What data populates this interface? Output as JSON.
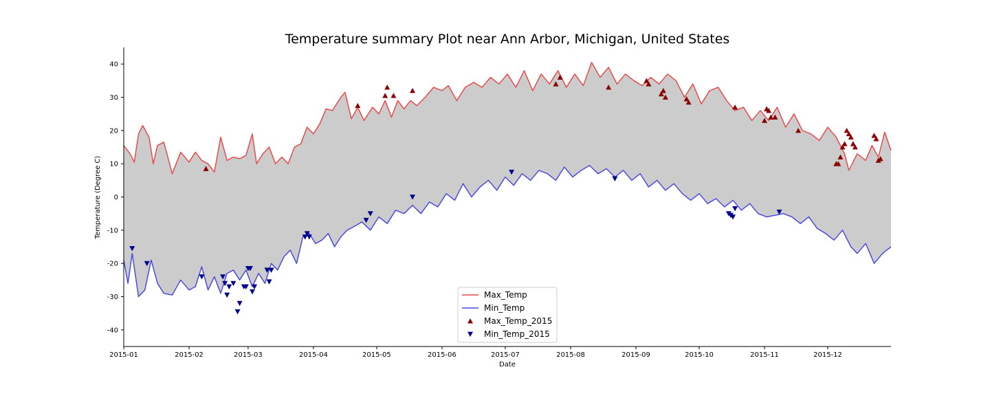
{
  "chart_data": {
    "type": "line",
    "title": "Temperature summary Plot near Ann Arbor, Michigan, United States",
    "xlabel": "Date",
    "ylabel": "Temperature (Degree C)",
    "xlim": [
      "2015-01-01",
      "2015-12-31"
    ],
    "ylim": [
      -45,
      45
    ],
    "x_ticks": [
      "2015-01",
      "2015-02",
      "2015-03",
      "2015-04",
      "2015-05",
      "2015-06",
      "2015-07",
      "2015-08",
      "2015-09",
      "2015-10",
      "2015-11",
      "2015-12"
    ],
    "y_ticks": [
      40,
      30,
      20,
      10,
      0,
      -10,
      -20,
      -30,
      -40
    ],
    "legend_position": "lower-center",
    "grid": false,
    "fill_between": {
      "color": "#cccccc"
    },
    "series": [
      {
        "name": "Max_Temp",
        "type": "line",
        "color": "#e84a4a",
        "points": [
          [
            "2015-01-01",
            15.5
          ],
          [
            "2015-01-04",
            13
          ],
          [
            "2015-01-06",
            10.5
          ],
          [
            "2015-01-08",
            19
          ],
          [
            "2015-01-10",
            21.5
          ],
          [
            "2015-01-13",
            18
          ],
          [
            "2015-01-15",
            10
          ],
          [
            "2015-01-17",
            15.5
          ],
          [
            "2015-01-20",
            16.5
          ],
          [
            "2015-01-24",
            7
          ],
          [
            "2015-01-28",
            13.5
          ],
          [
            "2015-02-01",
            10.5
          ],
          [
            "2015-02-04",
            13.5
          ],
          [
            "2015-02-07",
            11
          ],
          [
            "2015-02-10",
            10
          ],
          [
            "2015-02-13",
            7.5
          ],
          [
            "2015-02-16",
            18
          ],
          [
            "2015-02-19",
            11
          ],
          [
            "2015-02-22",
            12
          ],
          [
            "2015-02-25",
            11.5
          ],
          [
            "2015-02-28",
            12.5
          ],
          [
            "2015-03-03",
            19
          ],
          [
            "2015-03-05",
            10
          ],
          [
            "2015-03-08",
            13
          ],
          [
            "2015-03-11",
            15
          ],
          [
            "2015-03-14",
            10
          ],
          [
            "2015-03-17",
            12
          ],
          [
            "2015-03-20",
            10
          ],
          [
            "2015-03-23",
            15
          ],
          [
            "2015-03-26",
            16
          ],
          [
            "2015-03-29",
            21
          ],
          [
            "2015-04-01",
            19
          ],
          [
            "2015-04-04",
            22
          ],
          [
            "2015-04-07",
            26.5
          ],
          [
            "2015-04-10",
            26
          ],
          [
            "2015-04-14",
            30
          ],
          [
            "2015-04-16",
            31.5
          ],
          [
            "2015-04-19",
            23.5
          ],
          [
            "2015-04-22",
            27
          ],
          [
            "2015-04-25",
            23
          ],
          [
            "2015-04-29",
            27
          ],
          [
            "2015-05-02",
            25
          ],
          [
            "2015-05-05",
            29
          ],
          [
            "2015-05-08",
            24
          ],
          [
            "2015-05-11",
            29
          ],
          [
            "2015-05-14",
            26.5
          ],
          [
            "2015-05-17",
            29
          ],
          [
            "2015-05-20",
            27.5
          ],
          [
            "2015-05-24",
            30
          ],
          [
            "2015-05-28",
            33
          ],
          [
            "2015-06-01",
            32
          ],
          [
            "2015-06-04",
            33.5
          ],
          [
            "2015-06-08",
            29
          ],
          [
            "2015-06-12",
            33
          ],
          [
            "2015-06-16",
            34.5
          ],
          [
            "2015-06-20",
            33
          ],
          [
            "2015-06-24",
            36
          ],
          [
            "2015-06-28",
            34
          ],
          [
            "2015-07-02",
            37
          ],
          [
            "2015-07-06",
            33
          ],
          [
            "2015-07-10",
            38
          ],
          [
            "2015-07-14",
            32
          ],
          [
            "2015-07-18",
            37
          ],
          [
            "2015-07-22",
            34
          ],
          [
            "2015-07-26",
            38
          ],
          [
            "2015-07-30",
            33
          ],
          [
            "2015-08-03",
            37
          ],
          [
            "2015-08-07",
            33.5
          ],
          [
            "2015-08-11",
            40.5
          ],
          [
            "2015-08-15",
            36
          ],
          [
            "2015-08-19",
            39
          ],
          [
            "2015-08-23",
            34
          ],
          [
            "2015-08-27",
            37
          ],
          [
            "2015-08-31",
            35
          ],
          [
            "2015-09-04",
            33.5
          ],
          [
            "2015-09-08",
            36
          ],
          [
            "2015-09-12",
            34
          ],
          [
            "2015-09-16",
            37
          ],
          [
            "2015-09-20",
            35
          ],
          [
            "2015-09-24",
            30
          ],
          [
            "2015-09-28",
            34
          ],
          [
            "2015-10-02",
            28
          ],
          [
            "2015-10-06",
            32
          ],
          [
            "2015-10-10",
            33
          ],
          [
            "2015-10-14",
            29
          ],
          [
            "2015-10-18",
            26
          ],
          [
            "2015-10-22",
            27
          ],
          [
            "2015-10-26",
            23
          ],
          [
            "2015-10-30",
            26
          ],
          [
            "2015-11-03",
            23
          ],
          [
            "2015-11-07",
            27
          ],
          [
            "2015-11-11",
            21
          ],
          [
            "2015-11-15",
            25
          ],
          [
            "2015-11-19",
            20
          ],
          [
            "2015-11-23",
            19
          ],
          [
            "2015-11-27",
            17
          ],
          [
            "2015-12-01",
            21
          ],
          [
            "2015-12-05",
            18
          ],
          [
            "2015-12-09",
            13
          ],
          [
            "2015-12-11",
            8
          ],
          [
            "2015-12-15",
            13
          ],
          [
            "2015-12-19",
            11
          ],
          [
            "2015-12-22",
            15.5
          ],
          [
            "2015-12-25",
            12
          ],
          [
            "2015-12-28",
            19.5
          ],
          [
            "2015-12-31",
            14
          ]
        ]
      },
      {
        "name": "Min_Temp",
        "type": "line",
        "color": "#4a4ae0",
        "points": [
          [
            "2015-01-01",
            -19
          ],
          [
            "2015-01-03",
            -26
          ],
          [
            "2015-01-05",
            -17
          ],
          [
            "2015-01-08",
            -30
          ],
          [
            "2015-01-11",
            -28
          ],
          [
            "2015-01-14",
            -19
          ],
          [
            "2015-01-17",
            -26
          ],
          [
            "2015-01-20",
            -29
          ],
          [
            "2015-01-24",
            -29.5
          ],
          [
            "2015-01-28",
            -25
          ],
          [
            "2015-02-01",
            -28
          ],
          [
            "2015-02-04",
            -27
          ],
          [
            "2015-02-07",
            -21
          ],
          [
            "2015-02-10",
            -28
          ],
          [
            "2015-02-13",
            -24
          ],
          [
            "2015-02-16",
            -29
          ],
          [
            "2015-02-19",
            -23
          ],
          [
            "2015-02-22",
            -22
          ],
          [
            "2015-02-25",
            -25
          ],
          [
            "2015-02-28",
            -22
          ],
          [
            "2015-03-03",
            -27
          ],
          [
            "2015-03-06",
            -23
          ],
          [
            "2015-03-09",
            -26
          ],
          [
            "2015-03-12",
            -20
          ],
          [
            "2015-03-15",
            -22
          ],
          [
            "2015-03-18",
            -18
          ],
          [
            "2015-03-21",
            -16
          ],
          [
            "2015-03-24",
            -20
          ],
          [
            "2015-03-27",
            -12
          ],
          [
            "2015-03-30",
            -11
          ],
          [
            "2015-04-02",
            -14
          ],
          [
            "2015-04-05",
            -13
          ],
          [
            "2015-04-08",
            -11
          ],
          [
            "2015-04-11",
            -15
          ],
          [
            "2015-04-14",
            -12
          ],
          [
            "2015-04-17",
            -10
          ],
          [
            "2015-04-20",
            -9
          ],
          [
            "2015-04-24",
            -7.5
          ],
          [
            "2015-04-28",
            -10
          ],
          [
            "2015-05-02",
            -6
          ],
          [
            "2015-05-06",
            -8
          ],
          [
            "2015-05-10",
            -4
          ],
          [
            "2015-05-14",
            -5
          ],
          [
            "2015-05-18",
            -2.5
          ],
          [
            "2015-05-22",
            -5
          ],
          [
            "2015-05-26",
            -1.5
          ],
          [
            "2015-05-30",
            -3
          ],
          [
            "2015-06-03",
            1
          ],
          [
            "2015-06-07",
            -1
          ],
          [
            "2015-06-11",
            4
          ],
          [
            "2015-06-15",
            0
          ],
          [
            "2015-06-19",
            3
          ],
          [
            "2015-06-23",
            5
          ],
          [
            "2015-06-27",
            2
          ],
          [
            "2015-07-01",
            6
          ],
          [
            "2015-07-05",
            3.5
          ],
          [
            "2015-07-09",
            7
          ],
          [
            "2015-07-13",
            5
          ],
          [
            "2015-07-17",
            8
          ],
          [
            "2015-07-21",
            7
          ],
          [
            "2015-07-25",
            5
          ],
          [
            "2015-07-29",
            9
          ],
          [
            "2015-08-02",
            6
          ],
          [
            "2015-08-06",
            8
          ],
          [
            "2015-08-10",
            9.5
          ],
          [
            "2015-08-14",
            7
          ],
          [
            "2015-08-18",
            8.5
          ],
          [
            "2015-08-22",
            6
          ],
          [
            "2015-08-26",
            8
          ],
          [
            "2015-08-30",
            5
          ],
          [
            "2015-09-03",
            7
          ],
          [
            "2015-09-07",
            3
          ],
          [
            "2015-09-11",
            5
          ],
          [
            "2015-09-15",
            2
          ],
          [
            "2015-09-19",
            4
          ],
          [
            "2015-09-23",
            1
          ],
          [
            "2015-09-27",
            -1
          ],
          [
            "2015-10-01",
            1
          ],
          [
            "2015-10-05",
            -2
          ],
          [
            "2015-10-09",
            -0.5
          ],
          [
            "2015-10-13",
            -3
          ],
          [
            "2015-10-17",
            -1
          ],
          [
            "2015-10-21",
            -4
          ],
          [
            "2015-10-25",
            -2
          ],
          [
            "2015-10-29",
            -5
          ],
          [
            "2015-11-02",
            -6
          ],
          [
            "2015-11-06",
            -5.5
          ],
          [
            "2015-11-10",
            -5
          ],
          [
            "2015-11-14",
            -6
          ],
          [
            "2015-11-18",
            -8
          ],
          [
            "2015-11-22",
            -6
          ],
          [
            "2015-11-26",
            -9.5
          ],
          [
            "2015-11-30",
            -11
          ],
          [
            "2015-12-04",
            -13
          ],
          [
            "2015-12-08",
            -10
          ],
          [
            "2015-12-12",
            -15
          ],
          [
            "2015-12-15",
            -17
          ],
          [
            "2015-12-19",
            -14
          ],
          [
            "2015-12-23",
            -20
          ],
          [
            "2015-12-27",
            -17
          ],
          [
            "2015-12-31",
            -15
          ]
        ]
      },
      {
        "name": "Max_Temp_2015",
        "type": "scatter",
        "marker": "triangle-up",
        "color": "#8b0000",
        "points": [
          [
            "2015-02-09",
            8.5
          ],
          [
            "2015-04-22",
            27.5
          ],
          [
            "2015-05-05",
            30.5
          ],
          [
            "2015-05-06",
            33
          ],
          [
            "2015-05-09",
            30.5
          ],
          [
            "2015-05-18",
            32
          ],
          [
            "2015-07-25",
            34
          ],
          [
            "2015-07-27",
            36
          ],
          [
            "2015-08-19",
            33
          ],
          [
            "2015-09-06",
            35
          ],
          [
            "2015-09-07",
            34
          ],
          [
            "2015-09-13",
            31
          ],
          [
            "2015-09-14",
            32
          ],
          [
            "2015-09-15",
            30
          ],
          [
            "2015-09-25",
            29.5
          ],
          [
            "2015-09-26",
            28.5
          ],
          [
            "2015-10-18",
            27
          ],
          [
            "2015-11-01",
            23
          ],
          [
            "2015-11-02",
            26.5
          ],
          [
            "2015-11-03",
            26
          ],
          [
            "2015-11-04",
            24
          ],
          [
            "2015-11-06",
            24
          ],
          [
            "2015-11-17",
            20
          ],
          [
            "2015-12-05",
            10
          ],
          [
            "2015-12-06",
            10
          ],
          [
            "2015-12-07",
            12
          ],
          [
            "2015-12-08",
            15
          ],
          [
            "2015-12-09",
            16
          ],
          [
            "2015-12-10",
            20
          ],
          [
            "2015-12-11",
            19
          ],
          [
            "2015-12-12",
            18
          ],
          [
            "2015-12-13",
            16
          ],
          [
            "2015-12-14",
            15
          ],
          [
            "2015-12-23",
            18.5
          ],
          [
            "2015-12-24",
            17.5
          ],
          [
            "2015-12-25",
            11
          ],
          [
            "2015-12-26",
            11.5
          ]
        ]
      },
      {
        "name": "Min_Temp_2015",
        "type": "scatter",
        "marker": "triangle-down",
        "color": "#00008b",
        "points": [
          [
            "2015-01-05",
            -15.5
          ],
          [
            "2015-01-12",
            -20
          ],
          [
            "2015-02-07",
            -24
          ],
          [
            "2015-02-17",
            -24
          ],
          [
            "2015-02-18",
            -26
          ],
          [
            "2015-02-19",
            -29.5
          ],
          [
            "2015-02-20",
            -27
          ],
          [
            "2015-02-22",
            -26
          ],
          [
            "2015-02-24",
            -34.5
          ],
          [
            "2015-02-25",
            -32
          ],
          [
            "2015-02-27",
            -27
          ],
          [
            "2015-02-28",
            -27
          ],
          [
            "2015-03-01",
            -21.5
          ],
          [
            "2015-03-02",
            -21.5
          ],
          [
            "2015-03-03",
            -28.5
          ],
          [
            "2015-03-04",
            -27
          ],
          [
            "2015-03-10",
            -22
          ],
          [
            "2015-03-11",
            -25.5
          ],
          [
            "2015-03-12",
            -22
          ],
          [
            "2015-03-28",
            -12
          ],
          [
            "2015-03-29",
            -11
          ],
          [
            "2015-03-30",
            -12
          ],
          [
            "2015-04-26",
            -7
          ],
          [
            "2015-04-28",
            -5
          ],
          [
            "2015-05-18",
            0
          ],
          [
            "2015-07-04",
            7.5
          ],
          [
            "2015-08-22",
            5.5
          ],
          [
            "2015-10-15",
            -5
          ],
          [
            "2015-10-16",
            -5.5
          ],
          [
            "2015-10-17",
            -6
          ],
          [
            "2015-10-18",
            -3.5
          ],
          [
            "2015-11-08",
            -4.5
          ]
        ]
      }
    ]
  }
}
